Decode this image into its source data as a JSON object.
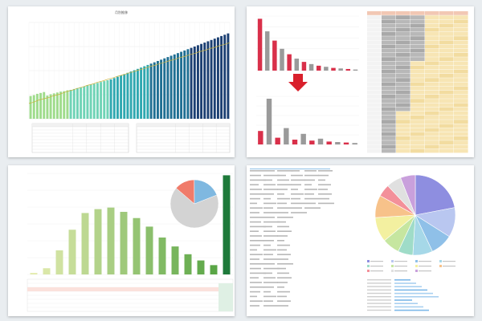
{
  "panels": [
    {
      "title": "月別推移",
      "chart_data": {
        "type": "bar",
        "title": "月別推移",
        "bar_groups": [
          {
            "color": "#9fdc8c",
            "values": [
              5200,
              5400,
              5700,
              5900,
              6100,
              5300,
              5600,
              5800,
              6000,
              6200,
              6300,
              6500
            ]
          },
          {
            "color": "#6fd3b6",
            "values": [
              6600,
              6800,
              7000,
              7200,
              7400,
              7600,
              7800,
              8000,
              8200,
              8400,
              8600,
              8800
            ]
          },
          {
            "color": "#2fa8b0",
            "values": [
              9000,
              9300,
              9600,
              9900,
              10200,
              10500,
              10800,
              11100,
              11400,
              11700,
              12000,
              12300
            ]
          },
          {
            "color": "#1f6f93",
            "values": [
              12600,
              12900,
              13200,
              13500,
              13800,
              14100,
              14400,
              14700,
              15000,
              15300,
              15600,
              15900
            ]
          },
          {
            "color": "#1b3f72",
            "values": [
              16200,
              16500,
              16800,
              17100,
              17400,
              17700,
              18000,
              18300,
              18600,
              18900,
              19200,
              19500
            ]
          }
        ],
        "line_values": [
          3500,
          3700,
          4000,
          4300,
          4500,
          4700,
          4900,
          5200,
          5400,
          5600,
          5900,
          6200,
          6400,
          6600,
          6900,
          7100,
          7300,
          7600,
          7800,
          8000,
          8300,
          8500,
          8700,
          9000,
          9200,
          9400,
          9700,
          9900,
          10100,
          10400,
          10600,
          10800,
          11100,
          11300,
          11500,
          11800,
          12000,
          12200,
          12500,
          12700,
          12900,
          13200,
          13400,
          13600,
          13900,
          14100,
          14300,
          14600,
          14800,
          15000,
          15300,
          15500,
          15700,
          16000,
          16200,
          16400,
          16700,
          16900,
          17100,
          17400
        ],
        "ylim": [
          0,
          22000
        ]
      }
    },
    {
      "chart_data": [
        {
          "type": "bar",
          "values": [
            95,
            72,
            55,
            40,
            30,
            22,
            16,
            12,
            9,
            7,
            5,
            4,
            3,
            2
          ],
          "colors": [
            "#d9304a",
            "#9a9a9a"
          ],
          "ylim": [
            0,
            100
          ]
        },
        {
          "type": "bar",
          "values": [
            28,
            95,
            14,
            34,
            10,
            22,
            8,
            12,
            6,
            5,
            4,
            3
          ],
          "colors": [
            "#d9304a",
            "#9a9a9a"
          ],
          "ylim": [
            0,
            100
          ]
        }
      ],
      "arrow_color": "#d9202c",
      "table_colors": {
        "gray": "#b8b8b8",
        "cream": "#f7e5b4",
        "header": "#f2c8b4"
      }
    },
    {
      "chart_data": {
        "type": "bar",
        "values": [
          40,
          160,
          620,
          1150,
          1580,
          1680,
          1720,
          1610,
          1450,
          1230,
          950,
          720,
          520,
          360,
          240,
          2550
        ],
        "colors": [
          "#e4ecb0",
          "#1e7a3a"
        ],
        "ylim": [
          0,
          2600
        ],
        "pie": {
          "type": "pie",
          "values": [
            67.3,
            13.6,
            19.1
          ],
          "colors": [
            "#d3d3d3",
            "#f07b6a",
            "#7fb8e0"
          ]
        }
      }
    },
    {
      "chart_data": {
        "type": "pie",
        "values": [
          22,
          12,
          9,
          8,
          6,
          7,
          10,
          9,
          5,
          6,
          6
        ],
        "colors": [
          "#8e8ee0",
          "#b9c7f0",
          "#8fc0e8",
          "#a6d8e8",
          "#9fdcc8",
          "#c6e6a0",
          "#f3f0a0",
          "#f7c28a",
          "#f3909a",
          "#e0e0e0",
          "#c9a0dc"
        ]
      }
    }
  ]
}
